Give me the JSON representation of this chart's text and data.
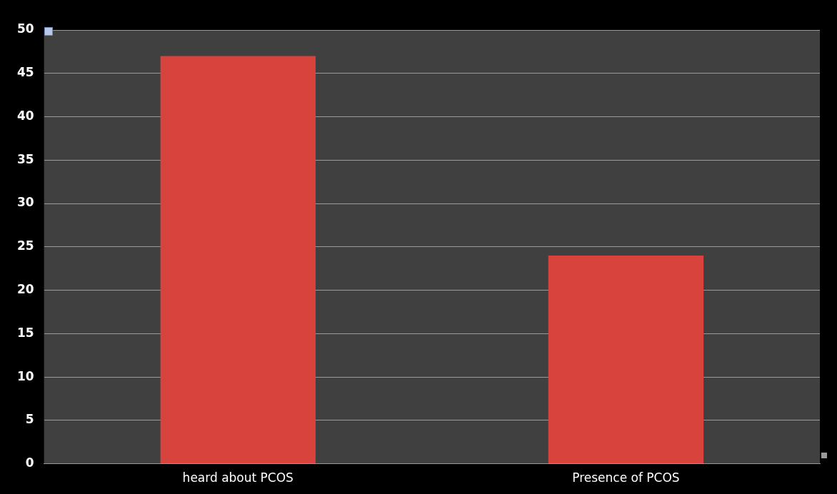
{
  "chart_data": {
    "type": "bar",
    "categories": [
      "heard about PCOS",
      "Presence of PCOS"
    ],
    "values": [
      47,
      24
    ],
    "color": "#d8433e",
    "ylim": [
      0,
      50
    ],
    "yticks": [
      0,
      5,
      10,
      15,
      20,
      25,
      30,
      35,
      40,
      45,
      50
    ],
    "grid": "y",
    "legend": false
  }
}
